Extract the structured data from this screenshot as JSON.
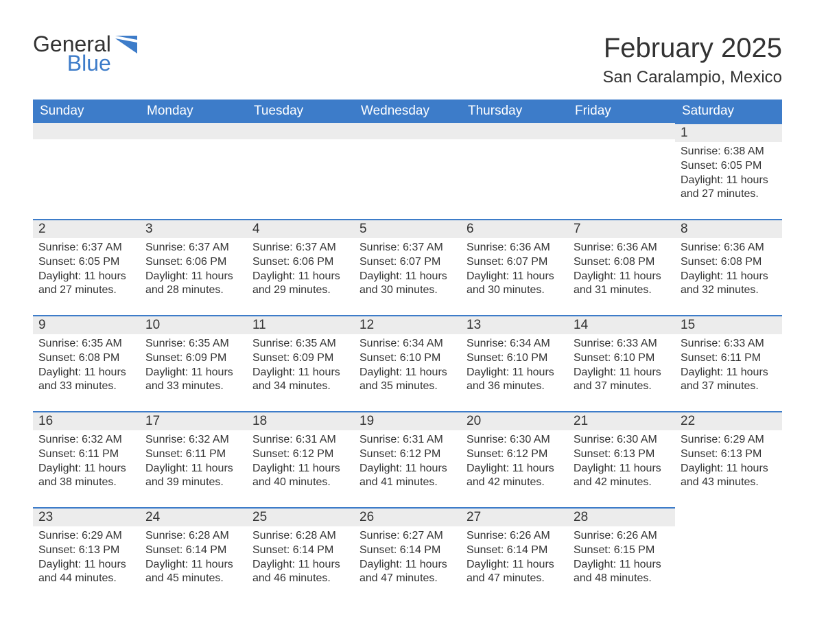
{
  "logo": {
    "word1": "General",
    "word2": "Blue",
    "icon_color": "#3d7cc9"
  },
  "title": "February 2025",
  "location": "San Caralampio, Mexico",
  "colors": {
    "header_bg": "#3d7cc9",
    "header_text": "#ffffff",
    "daynum_bg": "#ececec",
    "border_top": "#3d7cc9",
    "text": "#333333",
    "page_bg": "#ffffff"
  },
  "fonts": {
    "title_size": 40,
    "location_size": 24,
    "header_size": 19,
    "daynum_size": 19,
    "body_size": 16
  },
  "weekdays": [
    "Sunday",
    "Monday",
    "Tuesday",
    "Wednesday",
    "Thursday",
    "Friday",
    "Saturday"
  ],
  "weeks": [
    [
      null,
      null,
      null,
      null,
      null,
      null,
      {
        "n": "1",
        "sunrise": "Sunrise: 6:38 AM",
        "sunset": "Sunset: 6:05 PM",
        "daylight": "Daylight: 11 hours and 27 minutes."
      }
    ],
    [
      {
        "n": "2",
        "sunrise": "Sunrise: 6:37 AM",
        "sunset": "Sunset: 6:05 PM",
        "daylight": "Daylight: 11 hours and 27 minutes."
      },
      {
        "n": "3",
        "sunrise": "Sunrise: 6:37 AM",
        "sunset": "Sunset: 6:06 PM",
        "daylight": "Daylight: 11 hours and 28 minutes."
      },
      {
        "n": "4",
        "sunrise": "Sunrise: 6:37 AM",
        "sunset": "Sunset: 6:06 PM",
        "daylight": "Daylight: 11 hours and 29 minutes."
      },
      {
        "n": "5",
        "sunrise": "Sunrise: 6:37 AM",
        "sunset": "Sunset: 6:07 PM",
        "daylight": "Daylight: 11 hours and 30 minutes."
      },
      {
        "n": "6",
        "sunrise": "Sunrise: 6:36 AM",
        "sunset": "Sunset: 6:07 PM",
        "daylight": "Daylight: 11 hours and 30 minutes."
      },
      {
        "n": "7",
        "sunrise": "Sunrise: 6:36 AM",
        "sunset": "Sunset: 6:08 PM",
        "daylight": "Daylight: 11 hours and 31 minutes."
      },
      {
        "n": "8",
        "sunrise": "Sunrise: 6:36 AM",
        "sunset": "Sunset: 6:08 PM",
        "daylight": "Daylight: 11 hours and 32 minutes."
      }
    ],
    [
      {
        "n": "9",
        "sunrise": "Sunrise: 6:35 AM",
        "sunset": "Sunset: 6:08 PM",
        "daylight": "Daylight: 11 hours and 33 minutes."
      },
      {
        "n": "10",
        "sunrise": "Sunrise: 6:35 AM",
        "sunset": "Sunset: 6:09 PM",
        "daylight": "Daylight: 11 hours and 33 minutes."
      },
      {
        "n": "11",
        "sunrise": "Sunrise: 6:35 AM",
        "sunset": "Sunset: 6:09 PM",
        "daylight": "Daylight: 11 hours and 34 minutes."
      },
      {
        "n": "12",
        "sunrise": "Sunrise: 6:34 AM",
        "sunset": "Sunset: 6:10 PM",
        "daylight": "Daylight: 11 hours and 35 minutes."
      },
      {
        "n": "13",
        "sunrise": "Sunrise: 6:34 AM",
        "sunset": "Sunset: 6:10 PM",
        "daylight": "Daylight: 11 hours and 36 minutes."
      },
      {
        "n": "14",
        "sunrise": "Sunrise: 6:33 AM",
        "sunset": "Sunset: 6:10 PM",
        "daylight": "Daylight: 11 hours and 37 minutes."
      },
      {
        "n": "15",
        "sunrise": "Sunrise: 6:33 AM",
        "sunset": "Sunset: 6:11 PM",
        "daylight": "Daylight: 11 hours and 37 minutes."
      }
    ],
    [
      {
        "n": "16",
        "sunrise": "Sunrise: 6:32 AM",
        "sunset": "Sunset: 6:11 PM",
        "daylight": "Daylight: 11 hours and 38 minutes."
      },
      {
        "n": "17",
        "sunrise": "Sunrise: 6:32 AM",
        "sunset": "Sunset: 6:11 PM",
        "daylight": "Daylight: 11 hours and 39 minutes."
      },
      {
        "n": "18",
        "sunrise": "Sunrise: 6:31 AM",
        "sunset": "Sunset: 6:12 PM",
        "daylight": "Daylight: 11 hours and 40 minutes."
      },
      {
        "n": "19",
        "sunrise": "Sunrise: 6:31 AM",
        "sunset": "Sunset: 6:12 PM",
        "daylight": "Daylight: 11 hours and 41 minutes."
      },
      {
        "n": "20",
        "sunrise": "Sunrise: 6:30 AM",
        "sunset": "Sunset: 6:12 PM",
        "daylight": "Daylight: 11 hours and 42 minutes."
      },
      {
        "n": "21",
        "sunrise": "Sunrise: 6:30 AM",
        "sunset": "Sunset: 6:13 PM",
        "daylight": "Daylight: 11 hours and 42 minutes."
      },
      {
        "n": "22",
        "sunrise": "Sunrise: 6:29 AM",
        "sunset": "Sunset: 6:13 PM",
        "daylight": "Daylight: 11 hours and 43 minutes."
      }
    ],
    [
      {
        "n": "23",
        "sunrise": "Sunrise: 6:29 AM",
        "sunset": "Sunset: 6:13 PM",
        "daylight": "Daylight: 11 hours and 44 minutes."
      },
      {
        "n": "24",
        "sunrise": "Sunrise: 6:28 AM",
        "sunset": "Sunset: 6:14 PM",
        "daylight": "Daylight: 11 hours and 45 minutes."
      },
      {
        "n": "25",
        "sunrise": "Sunrise: 6:28 AM",
        "sunset": "Sunset: 6:14 PM",
        "daylight": "Daylight: 11 hours and 46 minutes."
      },
      {
        "n": "26",
        "sunrise": "Sunrise: 6:27 AM",
        "sunset": "Sunset: 6:14 PM",
        "daylight": "Daylight: 11 hours and 47 minutes."
      },
      {
        "n": "27",
        "sunrise": "Sunrise: 6:26 AM",
        "sunset": "Sunset: 6:14 PM",
        "daylight": "Daylight: 11 hours and 47 minutes."
      },
      {
        "n": "28",
        "sunrise": "Sunrise: 6:26 AM",
        "sunset": "Sunset: 6:15 PM",
        "daylight": "Daylight: 11 hours and 48 minutes."
      },
      null
    ]
  ]
}
